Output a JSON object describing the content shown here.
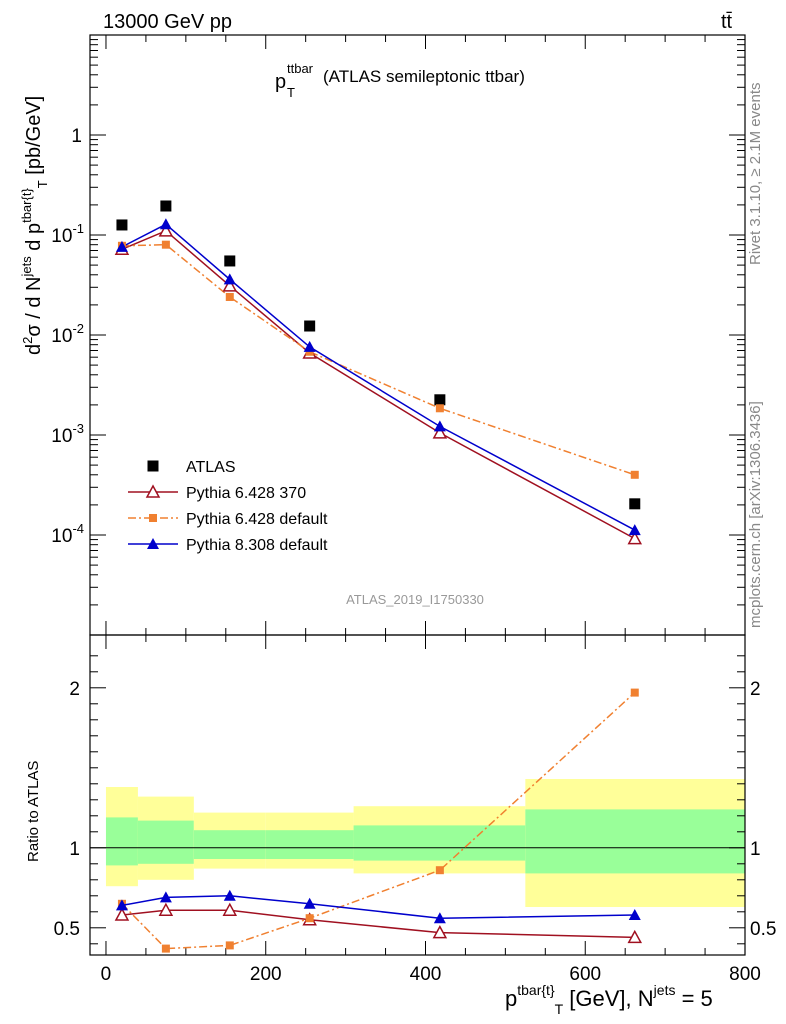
{
  "header": {
    "energy_label": "13000 GeV pp",
    "process_label": "tt̄",
    "plot_title_main": "p",
    "plot_title_sup": "ttbar",
    "plot_title_sub": "T",
    "plot_title_rest": "(ATLAS semileptonic ttbar)",
    "analysis_id": "ATLAS_2019_I1750330"
  },
  "side_labels": {
    "rivet": "Rivet 3.1.10, ≥ 2.1M events",
    "mcplots": "mcplots.cern.ch [arXiv:1306.3436]"
  },
  "axes": {
    "ylabel_top": "d²σ / d N^jets d p^tbar{t}_T [pb/GeV]",
    "ylabel_bottom": "Ratio to ATLAS",
    "xlabel_main": "p",
    "xlabel_sup": "tbar{t}",
    "xlabel_sub": "T",
    "xlabel_rest": " [GeV], N",
    "xlabel_sup2": "jets",
    "xlabel_tail": " = 5",
    "x_ticks": [
      "0",
      "200",
      "400",
      "600",
      "800"
    ],
    "top_y_ticks": [
      {
        "base": "10",
        "exp": "-4",
        "value": 0.0001
      },
      {
        "base": "10",
        "exp": "-3",
        "value": 0.001
      },
      {
        "base": "10",
        "exp": "-2",
        "value": 0.01
      },
      {
        "base": "10",
        "exp": "-1",
        "value": 0.1
      },
      {
        "base": "1",
        "exp": "",
        "value": 1
      }
    ],
    "bottom_y_ticks": [
      "0.5",
      "1",
      "2"
    ]
  },
  "legend": [
    {
      "name": "ATLAS",
      "color": "#000000",
      "marker": "square"
    },
    {
      "name": "Pythia 6.428 370",
      "color": "#a01020",
      "marker": "open-triangle"
    },
    {
      "name": "Pythia 6.428 default",
      "color": "#f08030",
      "marker": "small-square"
    },
    {
      "name": "Pythia 8.308 default",
      "color": "#0000cc",
      "marker": "filled-triangle"
    }
  ],
  "chart_data": [
    {
      "type": "scatter",
      "title": "",
      "xlabel": "p_T^tbar{t} [GeV], N^jets = 5",
      "ylabel": "d²σ / d N^jets d p^tbar{t}_T [pb/GeV]",
      "y_scale": "log",
      "xlim": [
        -20,
        800
      ],
      "ylim": [
        1e-05,
        10
      ],
      "x": [
        20,
        75,
        155,
        255,
        418,
        662
      ],
      "series": [
        {
          "name": "ATLAS",
          "values": [
            0.126,
            0.195,
            0.055,
            0.0123,
            0.00225,
            0.000205
          ]
        },
        {
          "name": "Pythia 6.428 370",
          "values": [
            0.072,
            0.11,
            0.031,
            0.0066,
            0.00105,
            9.2e-05
          ]
        },
        {
          "name": "Pythia 6.428 default",
          "values": [
            0.078,
            0.08,
            0.024,
            0.0068,
            0.00185,
            0.0004
          ]
        },
        {
          "name": "Pythia 8.308 default",
          "values": [
            0.076,
            0.128,
            0.036,
            0.0076,
            0.00122,
            0.000112
          ]
        }
      ],
      "legend": "bottom-left"
    },
    {
      "type": "scatter",
      "title": "",
      "xlabel": "p_T^tbar{t} [GeV], N^jets = 5",
      "ylabel": "Ratio to ATLAS",
      "xlim": [
        -20,
        800
      ],
      "ylim": [
        0.33,
        2.33
      ],
      "reference": 1,
      "x": [
        20,
        75,
        155,
        255,
        418,
        662
      ],
      "bins": [
        [
          0,
          40
        ],
        [
          40,
          110
        ],
        [
          110,
          200
        ],
        [
          200,
          310
        ],
        [
          310,
          525
        ],
        [
          525,
          800
        ]
      ],
      "band_inner": [
        [
          0.89,
          1.19
        ],
        [
          0.9,
          1.17
        ],
        [
          0.93,
          1.11
        ],
        [
          0.93,
          1.11
        ],
        [
          0.92,
          1.14
        ],
        [
          0.84,
          1.24
        ]
      ],
      "band_outer": [
        [
          0.76,
          1.38
        ],
        [
          0.8,
          1.32
        ],
        [
          0.87,
          1.22
        ],
        [
          0.87,
          1.22
        ],
        [
          0.84,
          1.26
        ],
        [
          0.63,
          1.43
        ]
      ],
      "series": [
        {
          "name": "Pythia 6.428 370",
          "values": [
            0.58,
            0.61,
            0.61,
            0.55,
            0.47,
            0.44
          ]
        },
        {
          "name": "Pythia 6.428 default",
          "values": [
            0.65,
            0.37,
            0.39,
            0.56,
            0.86,
            1.97
          ]
        },
        {
          "name": "Pythia 8.308 default",
          "values": [
            0.64,
            0.69,
            0.7,
            0.65,
            0.56,
            0.58
          ]
        }
      ]
    }
  ]
}
